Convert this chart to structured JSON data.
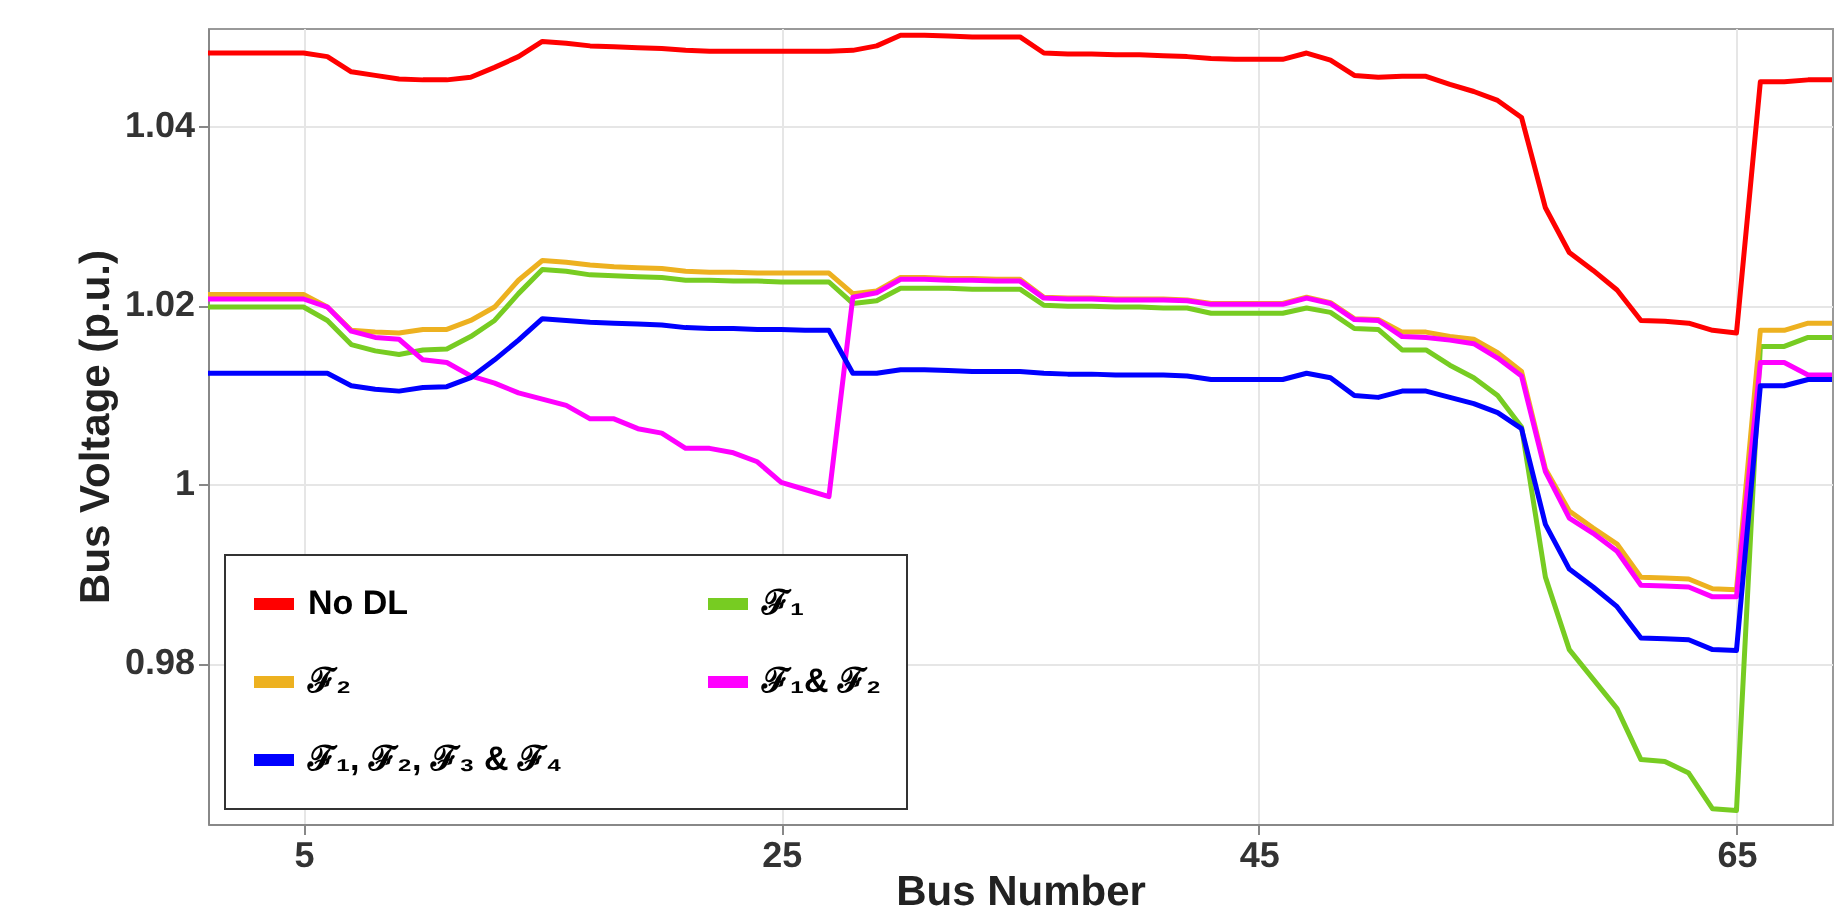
{
  "chart_data": {
    "type": "line",
    "xlabel": "Bus Number",
    "ylabel": "Bus Voltage (p.u.)",
    "x": [
      1,
      2,
      3,
      4,
      5,
      6,
      7,
      8,
      9,
      10,
      11,
      12,
      13,
      14,
      15,
      16,
      17,
      18,
      19,
      20,
      21,
      22,
      23,
      24,
      25,
      26,
      27,
      28,
      29,
      30,
      31,
      32,
      33,
      34,
      35,
      36,
      37,
      38,
      39,
      40,
      41,
      42,
      43,
      44,
      45,
      46,
      47,
      48,
      49,
      50,
      51,
      52,
      53,
      54,
      55,
      56,
      57,
      58,
      59,
      60,
      61,
      62,
      63,
      64,
      65,
      66,
      67,
      68,
      69
    ],
    "xlim": [
      1,
      69
    ],
    "xticks": [
      5,
      25,
      45,
      65
    ],
    "ylim": [
      0.962,
      1.051
    ],
    "yticks": [
      0.98,
      1,
      1.02,
      1.04
    ],
    "grid": true,
    "legend": "bottom left",
    "series": [
      {
        "name": "No DL",
        "color": "#ff0000",
        "values": [
          1.0482,
          1.0482,
          1.0482,
          1.0482,
          1.0482,
          1.0478,
          1.0461,
          1.0457,
          1.0453,
          1.0452,
          1.0452,
          1.0455,
          1.0466,
          1.0478,
          1.0495,
          1.0493,
          1.049,
          1.0489,
          1.0488,
          1.0487,
          1.0485,
          1.0484,
          1.0484,
          1.0484,
          1.0484,
          1.0484,
          1.0484,
          1.0485,
          1.049,
          1.0502,
          1.0502,
          1.0501,
          1.05,
          1.05,
          1.05,
          1.0482,
          1.0481,
          1.0481,
          1.048,
          1.048,
          1.0479,
          1.0478,
          1.0476,
          1.0475,
          1.0475,
          1.0475,
          1.0482,
          1.0474,
          1.0457,
          1.0455,
          1.0456,
          1.0456,
          1.0447,
          1.0439,
          1.0429,
          1.041,
          1.0309,
          1.0259,
          1.0239,
          1.0217,
          1.0183,
          1.0182,
          1.018,
          1.0172,
          1.0169,
          1.045,
          1.045,
          1.0452,
          1.0452
        ]
      },
      {
        "name": "ℱ₁",
        "color": "#77cc22",
        "values": [
          1.0198,
          1.0198,
          1.0198,
          1.0198,
          1.0198,
          1.0183,
          1.0156,
          1.0149,
          1.0145,
          1.015,
          1.0151,
          1.0165,
          1.0183,
          1.0213,
          1.024,
          1.0238,
          1.0234,
          1.0233,
          1.0232,
          1.0231,
          1.0228,
          1.0228,
          1.0227,
          1.0227,
          1.0226,
          1.0226,
          1.0226,
          1.0202,
          1.0205,
          1.0219,
          1.0219,
          1.0219,
          1.0218,
          1.0218,
          1.0218,
          1.02,
          1.0199,
          1.0199,
          1.0198,
          1.0198,
          1.0197,
          1.0197,
          1.0191,
          1.0191,
          1.0191,
          1.0191,
          1.0197,
          1.0192,
          1.0174,
          1.0173,
          1.015,
          1.015,
          1.0133,
          1.0119,
          1.0099,
          1.0064,
          0.9896,
          0.9815,
          0.9782,
          0.9749,
          0.9692,
          0.969,
          0.9677,
          0.9637,
          0.9635,
          1.0154,
          1.0154,
          1.0164,
          1.0164
        ]
      },
      {
        "name": "ℱ₂",
        "color": "#edb120",
        "values": [
          1.0212,
          1.0212,
          1.0212,
          1.0212,
          1.0212,
          1.0198,
          1.0172,
          1.017,
          1.0169,
          1.0173,
          1.0173,
          1.0183,
          1.0198,
          1.0228,
          1.025,
          1.0248,
          1.0245,
          1.0243,
          1.0242,
          1.0241,
          1.0238,
          1.0237,
          1.0237,
          1.0236,
          1.0236,
          1.0236,
          1.0236,
          1.0213,
          1.0216,
          1.0231,
          1.0231,
          1.023,
          1.023,
          1.0229,
          1.0229,
          1.0209,
          1.0208,
          1.0208,
          1.0207,
          1.0207,
          1.0207,
          1.0206,
          1.0202,
          1.0202,
          1.0202,
          1.0202,
          1.0209,
          1.0203,
          1.0185,
          1.0184,
          1.017,
          1.017,
          1.0165,
          1.0162,
          1.0147,
          1.0126,
          1.0017,
          0.997,
          0.9951,
          0.9933,
          0.9896,
          0.9895,
          0.9894,
          0.9883,
          0.9882,
          1.0172,
          1.0172,
          1.018,
          1.018
        ]
      },
      {
        "name": "ℱ₁& ℱ₂",
        "color": "#ff00ff",
        "values": [
          1.0207,
          1.0207,
          1.0207,
          1.0207,
          1.0207,
          1.0198,
          1.0171,
          1.0164,
          1.0162,
          1.0139,
          1.0136,
          1.0121,
          1.0113,
          1.0102,
          1.0095,
          1.0088,
          1.0073,
          1.0073,
          1.0062,
          1.0057,
          1.004,
          1.004,
          1.0035,
          1.0025,
          1.0002,
          0.9994,
          0.9986,
          1.0209,
          1.0214,
          1.0229,
          1.0229,
          1.0228,
          1.0228,
          1.0227,
          1.0227,
          1.0208,
          1.0207,
          1.0207,
          1.0206,
          1.0206,
          1.0206,
          1.0205,
          1.0201,
          1.0201,
          1.0201,
          1.0201,
          1.0208,
          1.0202,
          1.0184,
          1.0183,
          1.0165,
          1.0164,
          1.0161,
          1.0157,
          1.0141,
          1.0121,
          1.0014,
          0.9962,
          0.9945,
          0.9925,
          0.9887,
          0.9886,
          0.9885,
          0.9874,
          0.9874,
          1.0136,
          1.0136,
          1.0122,
          1.0122
        ]
      },
      {
        "name": "ℱ₁, ℱ₂, ℱ₃ & ℱ₄",
        "color": "#0000ff",
        "values": [
          1.0124,
          1.0124,
          1.0124,
          1.0124,
          1.0124,
          1.0124,
          1.011,
          1.0106,
          1.0104,
          1.0108,
          1.0109,
          1.0119,
          1.0139,
          1.0161,
          1.0185,
          1.0183,
          1.0181,
          1.018,
          1.0179,
          1.0178,
          1.0175,
          1.0174,
          1.0174,
          1.0173,
          1.0173,
          1.0172,
          1.0172,
          1.0124,
          1.0124,
          1.0128,
          1.0128,
          1.0127,
          1.0126,
          1.0126,
          1.0126,
          1.0124,
          1.0123,
          1.0123,
          1.0122,
          1.0122,
          1.0122,
          1.0121,
          1.0117,
          1.0117,
          1.0117,
          1.0117,
          1.0124,
          1.0119,
          1.0099,
          1.0097,
          1.0104,
          1.0104,
          1.0097,
          1.009,
          1.008,
          1.0062,
          0.9955,
          0.9905,
          0.9885,
          0.9863,
          0.9828,
          0.9827,
          0.9826,
          0.9815,
          0.9814,
          1.011,
          1.011,
          1.0117,
          1.0117
        ]
      }
    ]
  }
}
